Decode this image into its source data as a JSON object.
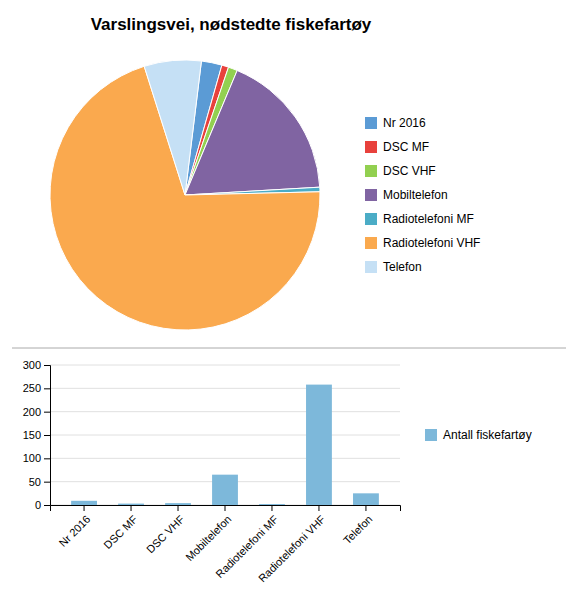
{
  "chart_data": [
    {
      "type": "pie",
      "title": "Varslingsvei, nødstedte fiskefartøy",
      "categories": [
        "Nr 2016",
        "DSC MF",
        "DSC VHF",
        "Mobiltelefon",
        "Radiotelefoni MF",
        "Radiotelefoni VHF",
        "Telefon"
      ],
      "values": [
        9,
        3,
        4,
        65,
        2,
        258,
        25
      ],
      "colors": [
        "#5B9BD5",
        "#E8413C",
        "#92D050",
        "#8064A2",
        "#4BACC6",
        "#FAA94E",
        "#C5E0F5"
      ],
      "legend": "right"
    },
    {
      "type": "bar",
      "categories": [
        "Nr 2016",
        "DSC MF",
        "DSC VHF",
        "Mobiltelefon",
        "Radiotelefoni MF",
        "Radiotelefoni VHF",
        "Telefon"
      ],
      "series": [
        {
          "name": "Antall fiskefartøy",
          "color": "#7DB8DA",
          "values": [
            9,
            3,
            4,
            65,
            2,
            258,
            25
          ]
        }
      ],
      "ylim": [
        0,
        300
      ],
      "yticks": [
        0,
        50,
        100,
        150,
        200,
        250,
        300
      ],
      "grid": true,
      "legend": "right"
    }
  ]
}
